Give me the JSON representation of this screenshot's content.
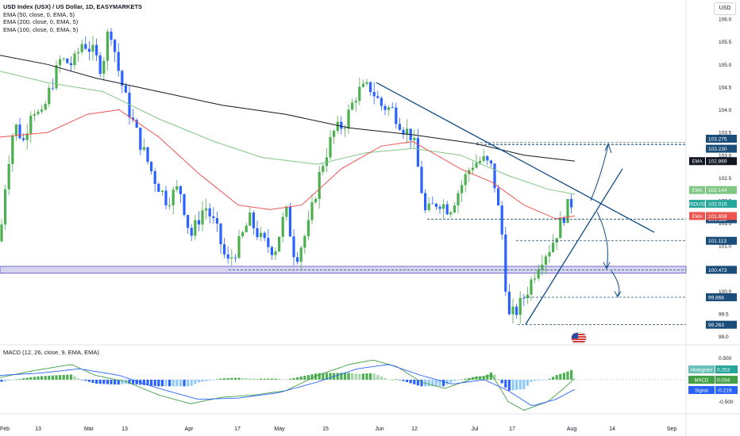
{
  "window": {
    "title": "USD Index (USX) / US Dollar, 1D, EASYMARKETS",
    "indicators": [
      "EMA (50, close, 0, EMA, 5)",
      "EMA (200, close, 0, EMA, 5)",
      "EMA (100, close, 0, EMA, 5)"
    ],
    "currency_button": "USD"
  },
  "chart_data": {
    "type": "candlestick",
    "main": {
      "y_ticks": [
        106.0,
        105.5,
        105.0,
        104.5,
        104.0,
        103.5,
        103.0,
        102.5,
        102.0,
        101.5,
        101.0,
        100.5,
        100.0,
        99.5,
        99.0
      ],
      "ylim": [
        98.82,
        106.42
      ],
      "price_levels": [
        {
          "value": "103.275",
          "color": "#1a4d7a",
          "style": "dashed"
        },
        {
          "value": "103.230",
          "color": "#1a4d7a",
          "style": "dashed"
        },
        {
          "value": "101.588",
          "color": "#1a4d7a",
          "style": "dashed"
        },
        {
          "value": "101.113",
          "color": "#1a4d7a",
          "style": "dashed"
        },
        {
          "value": "100.473",
          "color": "#1a4d7a",
          "style": "dashed"
        },
        {
          "value": "99.868",
          "color": "#1a4d7a",
          "style": "dashed"
        },
        {
          "value": "99.263",
          "color": "#1a4d7a",
          "style": "dashed"
        }
      ],
      "labels": [
        {
          "text": "EMA",
          "value": "102.869",
          "color": "#131722"
        },
        {
          "text": "EMA",
          "value": "102.144",
          "color": "#81c784"
        },
        {
          "text": "USDUSD",
          "value": "102.015",
          "color": "#26a69a"
        },
        {
          "text": "EMA",
          "value": "101.659",
          "color": "#ef5350"
        }
      ],
      "ema_colors": {
        "ema50": "#ef5350",
        "ema100": "#81c784",
        "ema200": "#131722"
      }
    },
    "macd": {
      "title": "MACD (12, 26, close, 9, EMA, EMA)",
      "y_ticks": [
        0.5,
        -0.5
      ],
      "ylim": [
        -0.78,
        0.78
      ],
      "labels": [
        {
          "text": "Histogram",
          "value": "0.253",
          "color": "#26a69a"
        },
        {
          "text": "MACD",
          "value": "0.034",
          "color": "#43a047"
        },
        {
          "text": "Signal",
          "value": "-0.219",
          "color": "#2962ff"
        }
      ]
    },
    "x_ticks": [
      "Feb",
      "13",
      "Mar",
      "13",
      "Apr",
      "17",
      "May",
      "15",
      "Jun",
      "12",
      "Jul",
      "17",
      "Aug",
      "14",
      "Sep"
    ]
  }
}
